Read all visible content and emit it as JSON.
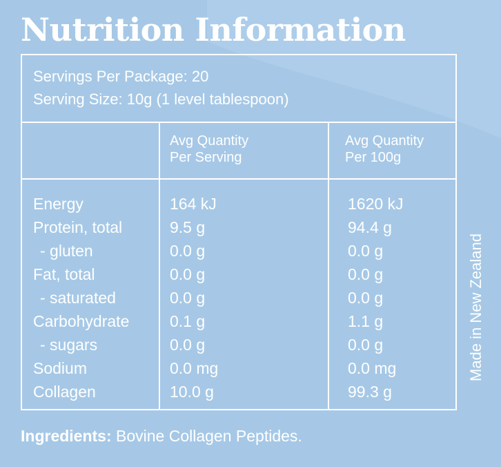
{
  "title": "Nutrition Information",
  "servings": {
    "per_package": "Servings Per Package: 20",
    "serving_size": "Serving Size: 10g (1 level tablespoon)"
  },
  "columns": {
    "per_serving": [
      "Avg Quantity",
      "Per Serving"
    ],
    "per_100g": [
      "Avg Quantity",
      "Per 100g"
    ]
  },
  "rows": [
    {
      "label": "Energy",
      "per_serving": "164 kJ",
      "per_100g": "1620 kJ"
    },
    {
      "label": "Protein, total",
      "per_serving": "9.5 g",
      "per_100g": "94.4 g"
    },
    {
      "label": "- gluten",
      "per_serving": "0.0 g",
      "per_100g": "0.0 g"
    },
    {
      "label": "Fat, total",
      "per_serving": "0.0 g",
      "per_100g": "0.0 g"
    },
    {
      "label": "- saturated",
      "per_serving": "0.0 g",
      "per_100g": "0.0 g"
    },
    {
      "label": "Carbohydrate",
      "per_serving": "0.1 g",
      "per_100g": "1.1 g"
    },
    {
      "label": "- sugars",
      "per_serving": "0.0 g",
      "per_100g": "0.0 g"
    },
    {
      "label": "Sodium",
      "per_serving": "0.0 mg",
      "per_100g": "0.0 mg"
    },
    {
      "label": "Collagen",
      "per_serving": "10.0 g",
      "per_100g": "99.3 g"
    }
  ],
  "side_text": "Made in New Zealand",
  "ingredients": {
    "label": "Ingredients:",
    "text": " Bovine Collagen Peptides."
  },
  "colors": {
    "background": "#a6c8e6",
    "text": "#ffffff"
  }
}
